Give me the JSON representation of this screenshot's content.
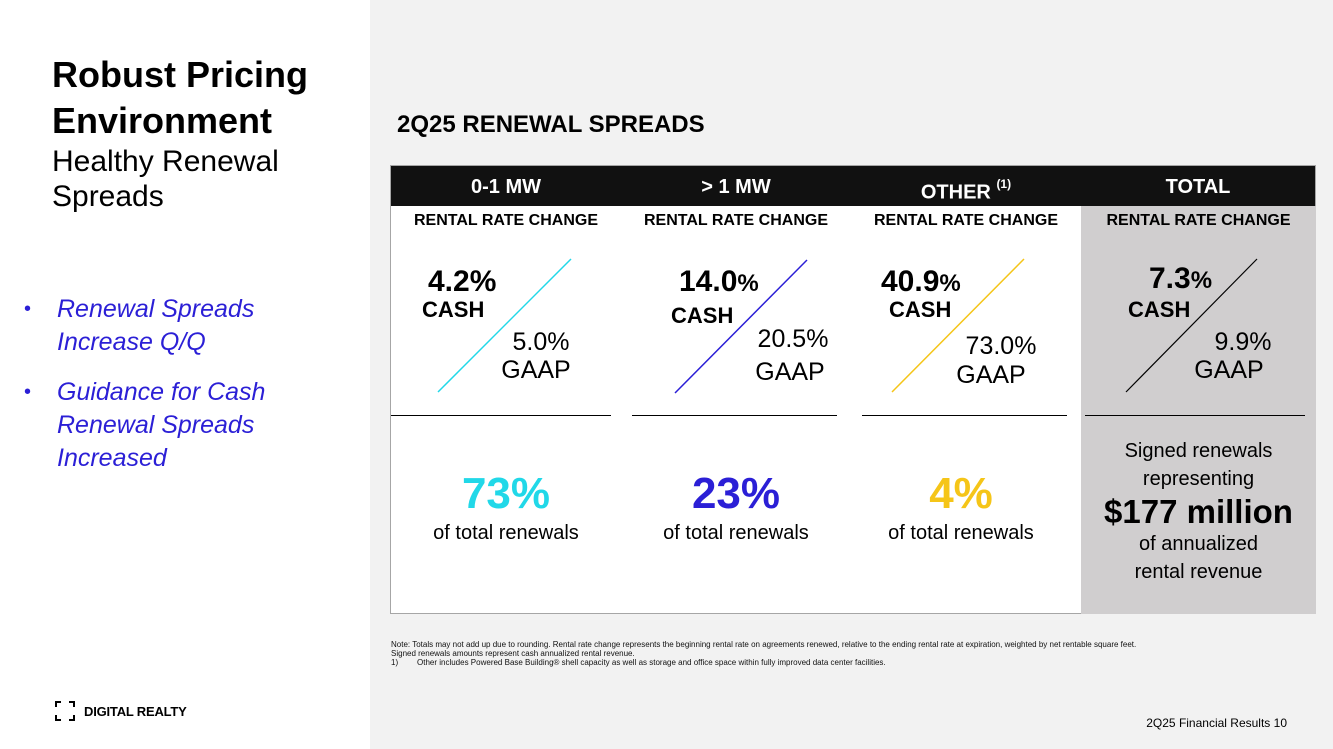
{
  "slide": {
    "title_line1": "Robust Pricing",
    "title_line2": "Environment",
    "subtitle_line1": "Healthy Renewal",
    "subtitle_line2": "Spreads",
    "bullets": [
      {
        "line1": "Renewal Spreads",
        "line2": "Increase Q/Q",
        "line3": ""
      },
      {
        "line1": "Guidance for Cash",
        "line2": "Renewal Spreads",
        "line3": "Increased"
      }
    ],
    "bullet_color": "#2b1fd6",
    "logo_text": "DIGITAL REALTY",
    "section_title": "2Q25 RENEWAL SPREADS",
    "footer": "2Q25 Financial Results 10"
  },
  "table": {
    "rental_rate_label": "RENTAL RATE CHANGE",
    "cash_label": "CASH",
    "gaap_label": "GAAP",
    "share_suffix": "of total renewals",
    "columns": [
      {
        "header": "0-1 MW",
        "header_sup": "",
        "cash_num": "4.2",
        "cash_pct": "%",
        "gaap": "5.0%",
        "share": "73%",
        "color": "#21d8e8"
      },
      {
        "header": "> 1 MW",
        "header_sup": "",
        "cash_num": "14.0",
        "cash_pct": "%",
        "gaap": "20.5%",
        "share": "23%",
        "color": "#2b1fd6"
      },
      {
        "header": "OTHER",
        "header_sup": "(1)",
        "cash_num": "40.9",
        "cash_pct": "%",
        "gaap": "73.0%",
        "share": "4%",
        "color": "#f5c518"
      },
      {
        "header": "TOTAL",
        "header_sup": "",
        "cash_num": "7.3",
        "cash_pct": "%",
        "gaap": "9.9%",
        "share": "",
        "color": "#000000"
      }
    ],
    "total_block": {
      "line1": "Signed renewals",
      "line2": "representing",
      "amount": "$177 million",
      "line3": "of annualized",
      "line4": "rental revenue"
    }
  },
  "notes": {
    "line1": "Note:  Totals may not add up due to rounding. Rental rate change represents the beginning rental rate on agreements renewed, relative to the ending rental rate at expiration, weighted by net rentable square feet.",
    "line2": "Signed renewals amounts represent cash annualized rental revenue.",
    "fn_num": "1)",
    "fn_text": "Other includes Powered Base Building® shell capacity as well as storage and office space within fully improved data center facilities."
  }
}
